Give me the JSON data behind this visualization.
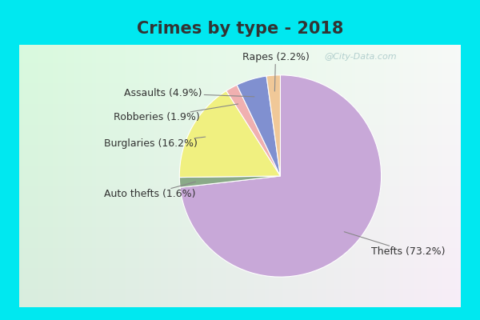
{
  "title": "Crimes by type - 2018",
  "slices": [
    {
      "label": "Thefts",
      "pct": 73.2,
      "color": "#c8a8d8"
    },
    {
      "label": "Auto thefts",
      "pct": 1.6,
      "color": "#8aaa88"
    },
    {
      "label": "Burglaries",
      "pct": 16.2,
      "color": "#f0f080"
    },
    {
      "label": "Robberies",
      "pct": 1.9,
      "color": "#f0b0b0"
    },
    {
      "label": "Assaults",
      "pct": 4.9,
      "color": "#8090d0"
    },
    {
      "label": "Rapes",
      "pct": 2.2,
      "color": "#f0c898"
    }
  ],
  "background_cyan": "#00e8f0",
  "title_fontsize": 15,
  "label_fontsize": 9,
  "watermark": "@City-Data.com",
  "border_width": 0.04
}
